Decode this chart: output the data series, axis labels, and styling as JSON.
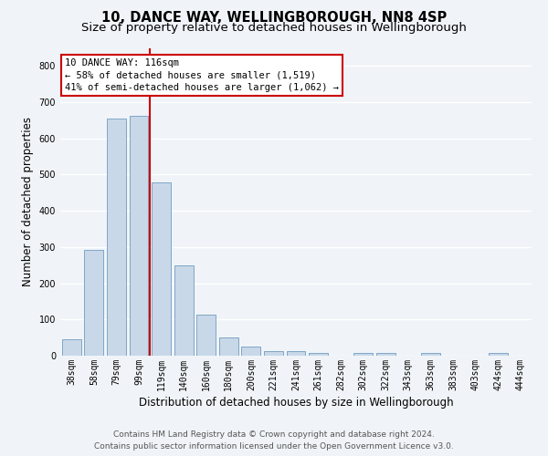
{
  "title_line1": "10, DANCE WAY, WELLINGBOROUGH, NN8 4SP",
  "title_line2": "Size of property relative to detached houses in Wellingborough",
  "xlabel": "Distribution of detached houses by size in Wellingborough",
  "ylabel": "Number of detached properties",
  "categories": [
    "38sqm",
    "58sqm",
    "79sqm",
    "99sqm",
    "119sqm",
    "140sqm",
    "160sqm",
    "180sqm",
    "200sqm",
    "221sqm",
    "241sqm",
    "261sqm",
    "282sqm",
    "302sqm",
    "322sqm",
    "343sqm",
    "363sqm",
    "383sqm",
    "403sqm",
    "424sqm",
    "444sqm"
  ],
  "values": [
    45,
    293,
    655,
    663,
    478,
    250,
    113,
    50,
    25,
    13,
    13,
    7,
    0,
    7,
    7,
    0,
    7,
    0,
    0,
    7,
    0
  ],
  "bar_color": "#c8d8e8",
  "bar_edge_color": "#5b8db8",
  "highlight_color": "#cc0000",
  "ylim": [
    0,
    850
  ],
  "yticks": [
    0,
    100,
    200,
    300,
    400,
    500,
    600,
    700,
    800
  ],
  "annotation_box_text": "10 DANCE WAY: 116sqm\n← 58% of detached houses are smaller (1,519)\n41% of semi-detached houses are larger (1,062) →",
  "footer_line1": "Contains HM Land Registry data © Crown copyright and database right 2024.",
  "footer_line2": "Contains public sector information licensed under the Open Government Licence v3.0.",
  "bg_color": "#f0f4f8",
  "grid_color": "#ffffff",
  "title_fontsize": 10.5,
  "subtitle_fontsize": 9.5,
  "axis_label_fontsize": 8.5,
  "tick_fontsize": 7,
  "footer_fontsize": 6.5,
  "annotation_fontsize": 7.5
}
